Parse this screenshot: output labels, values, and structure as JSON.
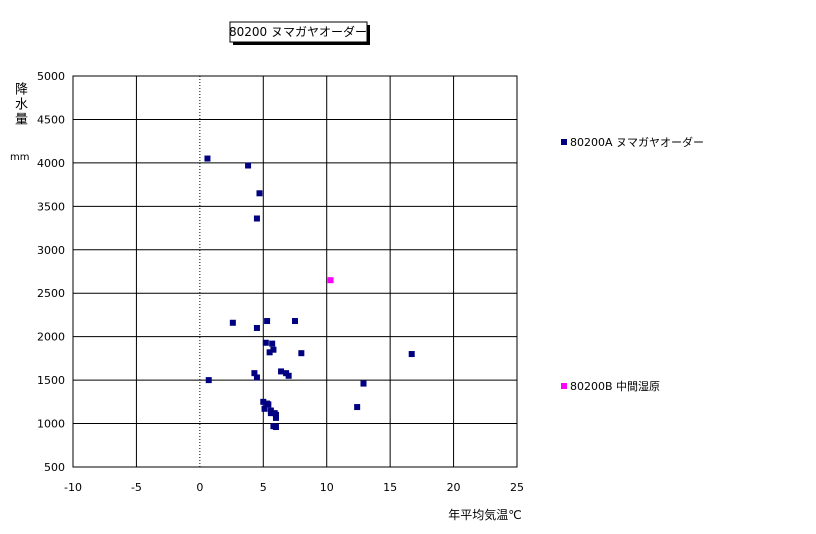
{
  "chart_data": {
    "type": "scatter",
    "title": "80200 ヌマガヤオーダー",
    "x_label": "年平均気温℃",
    "y_label": "降水量",
    "y_unit": "mm",
    "xlim": [
      -10,
      25
    ],
    "xticks": [
      -10,
      -5,
      0,
      5,
      10,
      15,
      20,
      25
    ],
    "ylim": [
      500,
      5000
    ],
    "yticks": [
      500,
      1000,
      1500,
      2000,
      2500,
      3000,
      3500,
      4000,
      4500,
      5000
    ],
    "grid": true,
    "series": [
      {
        "name": "80200A ヌマガヤオーダー",
        "color": "#000080",
        "x": [
          0.6,
          3.8,
          4.7,
          4.5,
          2.6,
          4.5,
          5.3,
          7.5,
          5.2,
          5.7,
          5.8,
          5.5,
          8.0,
          16.7,
          6.4,
          6.8,
          7.0,
          4.3,
          4.5,
          0.7,
          12.9,
          12.4,
          5.0,
          5.3,
          5.4,
          5.1,
          5.6,
          5.6,
          5.9,
          6.0,
          6.0,
          5.8,
          6.0
        ],
        "values": [
          4050,
          3970,
          3650,
          3360,
          2160,
          2100,
          2180,
          2180,
          1930,
          1920,
          1850,
          1820,
          1810,
          1800,
          1600,
          1580,
          1550,
          1580,
          1530,
          1500,
          1460,
          1190,
          1250,
          1230,
          1220,
          1170,
          1150,
          1120,
          1120,
          1100,
          1065,
          970,
          960
        ]
      },
      {
        "name": "80200B 中間湿原",
        "color": "#ff00ff",
        "x": [
          10.3
        ],
        "values": [
          2650
        ]
      }
    ]
  }
}
